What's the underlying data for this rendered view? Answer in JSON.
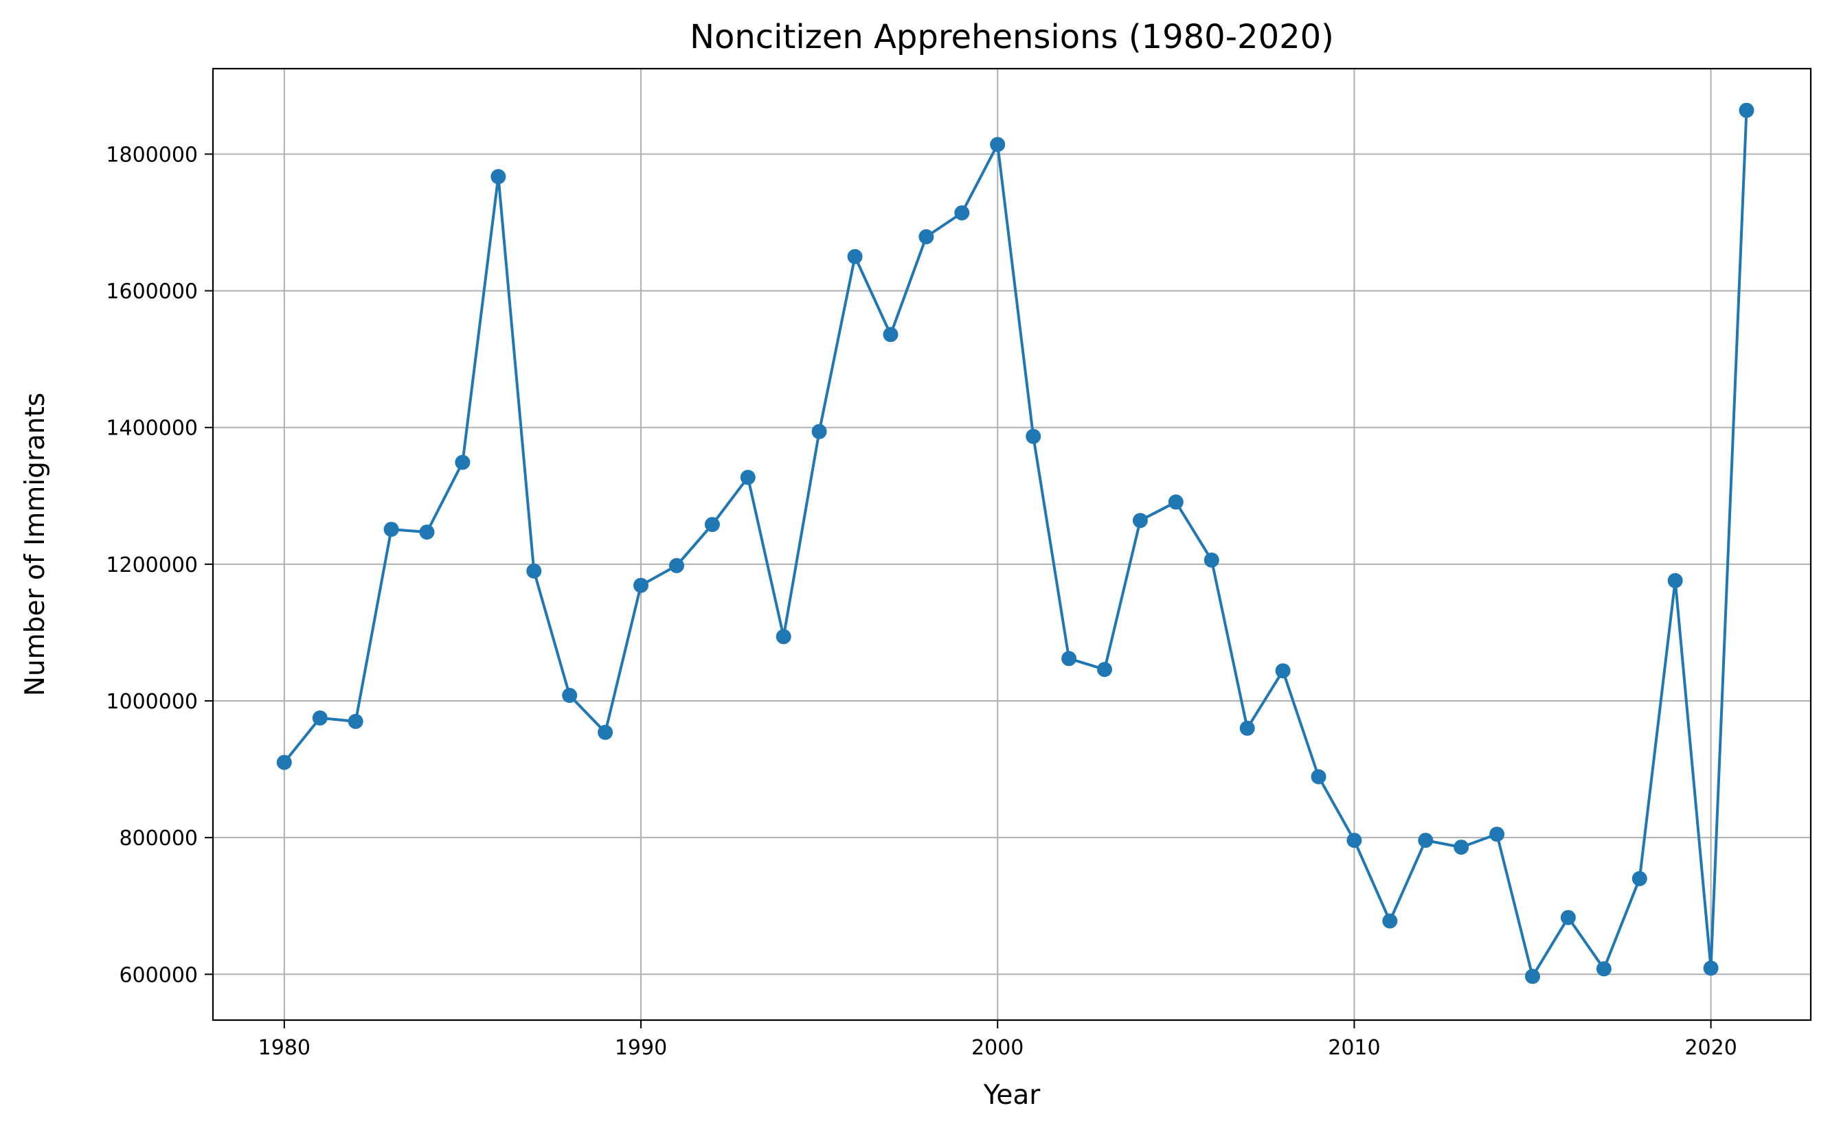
{
  "chart_data": {
    "type": "line",
    "title": "Noncitizen Apprehensions (1980-2020)",
    "xlabel": "Year",
    "ylabel": "Number of Immigrants",
    "xlim": [
      1978,
      2022.8
    ],
    "ylim": [
      533000,
      1925000
    ],
    "xticks": [
      1980,
      1990,
      2000,
      2010,
      2020
    ],
    "yticks": [
      600000,
      800000,
      1000000,
      1200000,
      1400000,
      1600000,
      1800000
    ],
    "grid": true,
    "marker": "circle",
    "color": "#1f77b4",
    "series": [
      {
        "x": [
          1980,
          1981,
          1982,
          1983,
          1984,
          1985,
          1986,
          1987,
          1988,
          1989,
          1990,
          1991,
          1992,
          1993,
          1994,
          1995,
          1996,
          1997,
          1998,
          1999,
          2000,
          2001,
          2002,
          2003,
          2004,
          2005,
          2006,
          2007,
          2008,
          2009,
          2010,
          2011,
          2012,
          2013,
          2014,
          2015,
          2016,
          2017,
          2018,
          2019,
          2020,
          2021
        ],
        "values": [
          910000,
          975000,
          970000,
          1251000,
          1247000,
          1349000,
          1767000,
          1190000,
          1008000,
          954000,
          1169000,
          1198000,
          1258000,
          1327000,
          1094000,
          1394000,
          1650000,
          1536000,
          1679000,
          1714000,
          1814000,
          1387000,
          1062000,
          1046000,
          1264000,
          1291000,
          1206000,
          960000,
          1044000,
          889000,
          796000,
          678000,
          796000,
          786000,
          805000,
          597000,
          683000,
          608000,
          740000,
          1176000,
          609000,
          1864000
        ]
      }
    ]
  }
}
